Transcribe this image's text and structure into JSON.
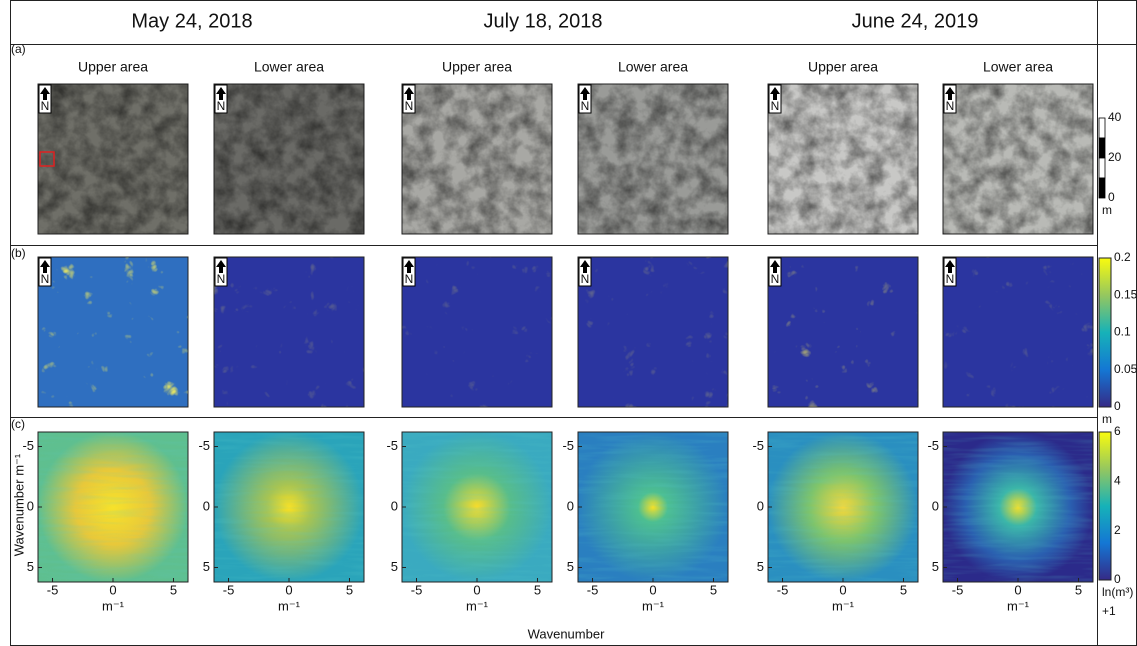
{
  "header": {
    "dates": [
      "May 24, 2018",
      "July 18, 2018",
      "June 24, 2019"
    ]
  },
  "rows": {
    "labels": [
      "(a)",
      "(b)",
      "(c)"
    ]
  },
  "panel_titles": [
    "Upper area",
    "Lower area"
  ],
  "north_label": "N",
  "colorbars": [
    {
      "ticks": [
        "40",
        "20",
        "0"
      ],
      "unit": "m"
    },
    {
      "ticks": [
        "0.2",
        "0.15",
        "0.1",
        "0.05",
        "0"
      ],
      "unit": "m"
    },
    {
      "ticks": [
        "6",
        "4",
        "2",
        "0"
      ],
      "unit": "ln(m³)",
      "unit2": "+1"
    }
  ],
  "spectrum": {
    "xticks": [
      -5,
      0,
      5
    ],
    "yticks": [
      -5,
      0,
      5
    ],
    "xlim": [
      -6.2,
      6.2
    ],
    "ylim": [
      -6.2,
      6.2
    ],
    "ylabel": "Wavenumber m⁻¹",
    "xunit": "m⁻¹",
    "xlabel": "Wavenumber"
  }
}
